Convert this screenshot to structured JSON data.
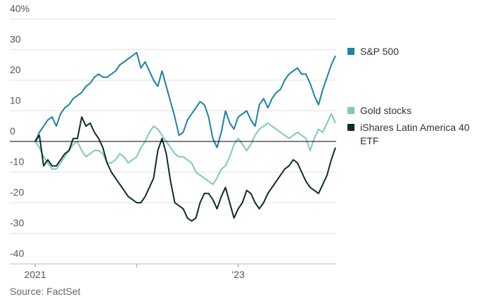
{
  "chart_data": {
    "type": "line",
    "source": "Source: FactSet",
    "categories": [
      "2021",
      null,
      null,
      null,
      null,
      null,
      null,
      null,
      null,
      null,
      null,
      null,
      null,
      null,
      null,
      null,
      null,
      null,
      null,
      null,
      null,
      null,
      null,
      null,
      null,
      null,
      null,
      null,
      null,
      null,
      null,
      null,
      null,
      null,
      null,
      null,
      null,
      null,
      null,
      null,
      null,
      null,
      null,
      null,
      null,
      null,
      null,
      null,
      "'23",
      null,
      null,
      null,
      null,
      null,
      null,
      null,
      null,
      null,
      null,
      null,
      null,
      null,
      null,
      null,
      null,
      null,
      null,
      null,
      null,
      null,
      null,
      null
    ],
    "series": [
      {
        "name": "S&P 500",
        "color": "#1b82a8",
        "values": [
          0,
          3,
          5,
          7,
          8,
          5,
          9,
          11,
          12,
          14,
          15,
          16,
          18,
          19,
          21,
          22,
          21,
          21,
          22,
          23,
          25,
          26,
          27,
          28,
          29,
          24,
          26,
          23,
          20,
          18,
          23,
          18,
          13,
          8,
          2,
          3,
          7,
          9,
          11,
          13,
          12,
          8,
          1,
          -2,
          3,
          10,
          6,
          4,
          8,
          9,
          10,
          7,
          5,
          12,
          14,
          11,
          14,
          16,
          17,
          20,
          22,
          23,
          24,
          22,
          22,
          19,
          15,
          12,
          17,
          21,
          25,
          28
        ]
      },
      {
        "name": "Gold stocks",
        "color": "#7fc8be",
        "values": [
          0,
          -2,
          -5,
          -7,
          -9,
          -9,
          -7,
          -5,
          -3,
          -1,
          0,
          -3,
          -5,
          -4,
          -3,
          -3,
          -4,
          -7,
          -7,
          -6,
          -4,
          -5,
          -7,
          -6,
          -5,
          -2,
          0,
          3,
          5,
          4,
          2,
          0,
          -2,
          -4,
          -5,
          -5,
          -6,
          -7,
          -10,
          -11,
          -12,
          -13,
          -14,
          -12,
          -9,
          -8,
          -5,
          -1,
          1,
          -1,
          -3,
          -1,
          2,
          4,
          5,
          6,
          5,
          4,
          3,
          2,
          1,
          2,
          3,
          2,
          1,
          -3,
          1,
          4,
          3,
          6,
          9,
          6
        ]
      },
      {
        "name": "iShares Latin America 40 ETF",
        "color": "#0f2b2b",
        "values": [
          0,
          2,
          -8,
          -6,
          -8,
          -8,
          -6,
          -4,
          -3,
          1,
          1,
          8,
          5,
          6,
          3,
          1,
          -2,
          -7,
          -10,
          -12,
          -14,
          -16,
          -18,
          -19,
          -20,
          -20,
          -18,
          -15,
          -12,
          -3,
          1,
          -4,
          -13,
          -20,
          -21,
          -22,
          -25,
          -26,
          -25,
          -20,
          -17,
          -17,
          -19,
          -22,
          -18,
          -15,
          -20,
          -25,
          -22,
          -20,
          -16,
          -17,
          -20,
          -22,
          -20,
          -17,
          -15,
          -13,
          -11,
          -9,
          -8,
          -6,
          -7,
          -10,
          -13,
          -15,
          -16,
          -17,
          -14,
          -11,
          -6,
          -2
        ]
      }
    ],
    "ylim": [
      -40,
      40
    ],
    "yticks": [
      -40,
      -30,
      -20,
      -10,
      0,
      10,
      20,
      30,
      {
        "value": 40,
        "label": "40%"
      }
    ],
    "grid": true
  }
}
